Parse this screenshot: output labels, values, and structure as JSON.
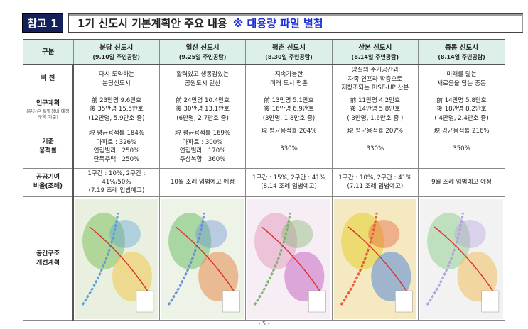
{
  "header": {
    "tag": "참고 1",
    "title": "1기 신도시 기본계획안 주요 내용",
    "note": "※ 대용량 파일 별첨"
  },
  "table": {
    "corner": "구분",
    "columns": [
      {
        "name": "분당 신도시",
        "date": "(9.10일 주민공람)"
      },
      {
        "name": "일산 신도시",
        "date": "(9.25일 주민공람)"
      },
      {
        "name": "평촌 신도시",
        "date": "(8.30일 주민공람)"
      },
      {
        "name": "산본 신도시",
        "date": "(8.14일 주민공람)"
      },
      {
        "name": "중동 신도시",
        "date": "(8.14일 주민공람)"
      }
    ],
    "rows": {
      "vision": {
        "label": "비 전",
        "cells": [
          [
            "다시 도약하는",
            "분당신도시"
          ],
          [
            "활력있고 생동감있는",
            "공원도시 일산"
          ],
          [
            "지속가능한",
            "미래 도시 평촌"
          ],
          [
            "양질의 주거공간과",
            "자족 인프라 확충으로",
            "재창조되는 RISE-UP 산본"
          ],
          [
            "미래를 닮는",
            "새로움을 담는 중동"
          ]
        ]
      },
      "population": {
        "label": "인구계획",
        "sublabel": "(분당은 특별정비 예정구역 기준)",
        "cells": [
          [
            "前 23만명 9.6만호",
            "後 35만명 15.5만호",
            "(12만명, 5.9만호 증)"
          ],
          [
            "前 24만명 10.4만호",
            "後 30만명 13.1만호",
            "(6만명, 2.7만호 증)"
          ],
          [
            "前 13만명 5.1만호",
            "後 16만명 6.9만호",
            "(3만명, 1.8만호 증)"
          ],
          [
            "前 11만명 4.2만호",
            "後 14만명 5.8만호",
            "( 3만명, 1.6만호 증 )"
          ],
          [
            "前 14만명 5.8만호",
            "後 18만명 8.2만호",
            "( 4만명, 2.4만호 증)"
          ]
        ]
      },
      "far": {
        "label1": "기준",
        "label2": "용적률",
        "cells": [
          [
            "現 평균용적률 184%",
            "아파트 : 326%",
            "연립빌라 : 250%",
            "단독주택 : 250%"
          ],
          [
            "現 평균용적률 169%",
            "아파트 : 300%",
            "연립빌라 : 170%",
            "주상복합 : 360%"
          ],
          [
            "現 평균용적률 204%",
            "330%"
          ],
          [
            "現 평균용적률 207%",
            "330%"
          ],
          [
            "現 평균용적률 216%",
            "350%"
          ]
        ]
      },
      "contribution": {
        "label1": "공공기여",
        "label2": "비율(조례)",
        "cells": [
          [
            "1구간 : 10%, 2구간 : 41%/50%",
            "(7.19 조례 입법예고)"
          ],
          [
            "10월 조례 입법예고 예정"
          ],
          [
            "1구간 : 15%, 2구간 : 41%",
            "(8.14 조례 입법예고)"
          ],
          [
            "1구간 : 10%, 2구간 : 41%",
            "(7.11 조례 입법예고)"
          ],
          [
            "9월 조례 입법예고 예정"
          ]
        ]
      },
      "spatial": {
        "label1": "공간구조",
        "label2": "개선계획"
      }
    }
  },
  "footer": {
    "page": "- 5 -"
  }
}
